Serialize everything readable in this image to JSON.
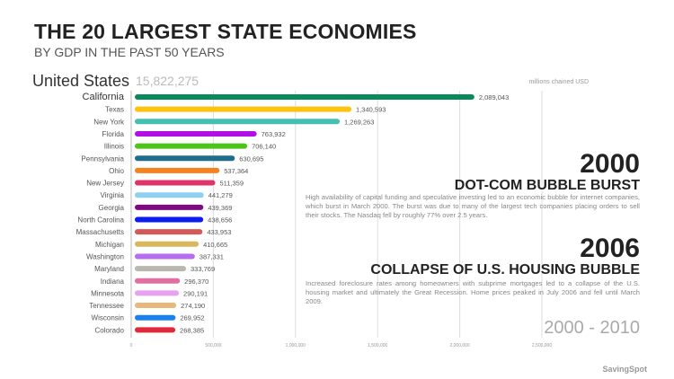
{
  "header": {
    "title": "THE 20 LARGEST STATE ECONOMIES",
    "subtitle": "BY GDP IN THE PAST 50 YEARS",
    "total_label": "United States",
    "total_value": "15,822,275",
    "unit": "millions chained USD"
  },
  "events": [
    {
      "year": "2000",
      "heading": "DOT-COM BUBBLE BURST",
      "text": "High availability of capital funding and speculative investing led to an economic bubble for internet companies, which burst in March 2000. The burst was due to many of the largest tech companies placing orders to sell their stocks. The Nasdaq fell by roughly 77% over 2.5 years."
    },
    {
      "year": "2006",
      "heading": "COLLAPSE OF U.S. HOUSING BUBBLE",
      "text": "Increased foreclosure rates among homeowners with subprime mortgages led to a collapse of the U.S. housing market and ultimately the Great Recession. Home prices peaked in July 2006 and fell until March 2009."
    }
  ],
  "period": "2000 - 2010",
  "brand": "SavingSpot",
  "chart_data": {
    "type": "bar",
    "orientation": "horizontal",
    "grid": true,
    "xlim": [
      0,
      2500000
    ],
    "xticks": [
      "0",
      "500,000",
      "1,000,000",
      "1,500,000",
      "2,000,000",
      "2,500,000"
    ],
    "categories": [
      "California",
      "Texas",
      "New York",
      "Florida",
      "Illinois",
      "Pennsylvania",
      "Ohio",
      "New Jersey",
      "Virginia",
      "Georgia",
      "North Carolina",
      "Massachusetts",
      "Michigan",
      "Washington",
      "Maryland",
      "Indiana",
      "Minnesota",
      "Tennessee",
      "Wisconsin",
      "Colorado"
    ],
    "values": [
      2089043,
      1340593,
      1269263,
      763932,
      706140,
      630695,
      537364,
      511359,
      441279,
      439369,
      438656,
      433953,
      410665,
      387331,
      333769,
      296370,
      290191,
      274190,
      269952,
      268385
    ],
    "labels": [
      "2,089,043",
      "1,340,593",
      "1,269,263",
      "763,932",
      "706,140",
      "630,695",
      "537,364",
      "511,359",
      "441,279",
      "439,369",
      "438,656",
      "433,953",
      "410,665",
      "387,331",
      "333,769",
      "296,370",
      "290,191",
      "274,190",
      "269,952",
      "268,385"
    ],
    "colors": [
      "#0a8a5a",
      "#ffc20e",
      "#45c0b0",
      "#b30ee8",
      "#4cc41a",
      "#1f6e8c",
      "#f5821f",
      "#e0336a",
      "#8fd0f0",
      "#7d0a80",
      "#0a1ef0",
      "#d45a5a",
      "#d9b85c",
      "#b56ef0",
      "#b8b8b0",
      "#e070a0",
      "#e8a0f0",
      "#e8b87a",
      "#1a80f0",
      "#e02a3a"
    ]
  }
}
